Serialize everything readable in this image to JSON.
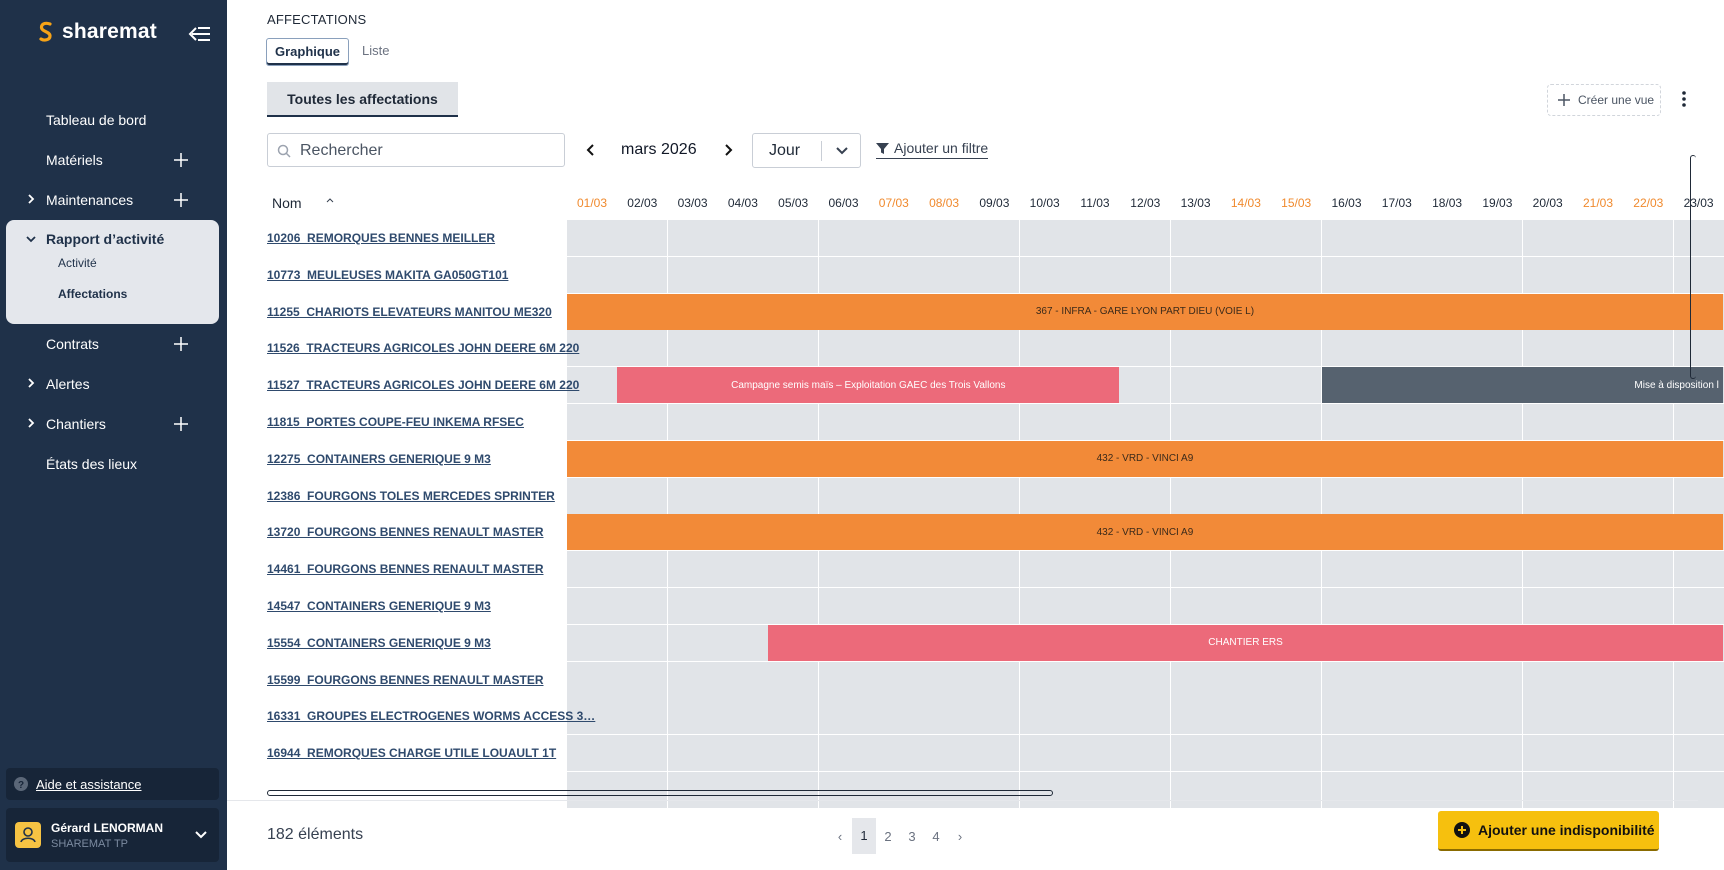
{
  "app": {
    "name": "sharemat"
  },
  "nav": {
    "items": [
      {
        "label": "Tableau de bord",
        "chevron": false,
        "plus": false
      },
      {
        "label": "Matériels",
        "chevron": false,
        "plus": true
      },
      {
        "label": "Maintenances",
        "chevron": true,
        "plus": true
      }
    ],
    "active_group": {
      "label": "Rapport d’activité",
      "children": [
        "Activité",
        "Affectations"
      ]
    },
    "items_after": [
      {
        "label": "Contrats",
        "chevron": false,
        "plus": true
      },
      {
        "label": "Alertes",
        "chevron": true,
        "plus": false
      },
      {
        "label": "Chantiers",
        "chevron": true,
        "plus": true
      },
      {
        "label": "États des lieux",
        "chevron": false,
        "plus": false
      }
    ],
    "help_label": "Aide et assistance"
  },
  "user": {
    "name": "Gérard LENORMAN",
    "company": "SHAREMAT TP"
  },
  "page": {
    "title": "AFFECTATIONS",
    "tabs": [
      "Graphique",
      "Liste"
    ],
    "view_tab": "Toutes les affectations",
    "create_view": "Créer une vue"
  },
  "toolbar": {
    "search_placeholder": "Rechercher",
    "month": "mars 2026",
    "granularity": "Jour",
    "filter_label": "Ajouter un filtre"
  },
  "grid": {
    "name_header": "Nom",
    "days": [
      {
        "label": "01/03",
        "weekend": true
      },
      {
        "label": "02/03",
        "weekend": false
      },
      {
        "label": "03/03",
        "weekend": false
      },
      {
        "label": "04/03",
        "weekend": false
      },
      {
        "label": "05/03",
        "weekend": false
      },
      {
        "label": "06/03",
        "weekend": false
      },
      {
        "label": "07/03",
        "weekend": true
      },
      {
        "label": "08/03",
        "weekend": true
      },
      {
        "label": "09/03",
        "weekend": false
      },
      {
        "label": "10/03",
        "weekend": false
      },
      {
        "label": "11/03",
        "weekend": false
      },
      {
        "label": "12/03",
        "weekend": false
      },
      {
        "label": "13/03",
        "weekend": false
      },
      {
        "label": "14/03",
        "weekend": true
      },
      {
        "label": "15/03",
        "weekend": true
      },
      {
        "label": "16/03",
        "weekend": false
      },
      {
        "label": "17/03",
        "weekend": false
      },
      {
        "label": "18/03",
        "weekend": false
      },
      {
        "label": "19/03",
        "weekend": false
      },
      {
        "label": "20/03",
        "weekend": false
      },
      {
        "label": "21/03",
        "weekend": true
      },
      {
        "label": "22/03",
        "weekend": true
      },
      {
        "label": "23/03",
        "weekend": false
      }
    ],
    "rows": [
      {
        "name": "10206_REMORQUES BENNES MEILLER",
        "bars": []
      },
      {
        "name": "10773_MEULEUSES MAKITA GA050GT101",
        "bars": []
      },
      {
        "name": "11255_CHARIOTS ELEVATEURS MANITOU ME320",
        "bars": [
          {
            "start": 0,
            "end": 23,
            "label": "367 - INFRA - GARE LYON PART DIEU (VOIE L)",
            "color": "orange"
          }
        ]
      },
      {
        "name": "11526_TRACTEURS AGRICOLES JOHN DEERE 6M 220",
        "bars": []
      },
      {
        "name": "11527_TRACTEURS AGRICOLES JOHN DEERE 6M 220",
        "bars": [
          {
            "start": 1,
            "end": 11,
            "label": "Campagne semis maïs – Exploitation GAEC des Trois Vallons",
            "color": "pink"
          },
          {
            "start": 15,
            "end": 23,
            "label": "Mise à disposition l",
            "color": "grey"
          }
        ]
      },
      {
        "name": "11815_PORTES COUPE-FEU INKEMA RFSEC",
        "bars": []
      },
      {
        "name": "12275_CONTAINERS GENERIQUE 9 M3",
        "bars": [
          {
            "start": 0,
            "end": 23,
            "label": "432 - VRD - VINCI A9",
            "color": "orange"
          }
        ]
      },
      {
        "name": "12386_FOURGONS TOLES MERCEDES SPRINTER",
        "bars": []
      },
      {
        "name": "13720_FOURGONS BENNES RENAULT MASTER",
        "bars": [
          {
            "start": 0,
            "end": 23,
            "label": "432 - VRD - VINCI A9",
            "color": "orange"
          }
        ]
      },
      {
        "name": "14461_FOURGONS BENNES RENAULT MASTER",
        "bars": []
      },
      {
        "name": "14547_CONTAINERS GENERIQUE 9 M3",
        "bars": []
      },
      {
        "name": "15554_CONTAINERS GENERIQUE 9 M3",
        "bars": [
          {
            "start": 4,
            "end": 23,
            "label": "CHANTIER ERS",
            "color": "pink"
          }
        ]
      },
      {
        "name": "15599_FOURGONS BENNES RENAULT MASTER",
        "bars": []
      },
      {
        "name": "16331_GROUPES ELECTROGENES WORMS ACCESS 3…",
        "bars": []
      },
      {
        "name": "16944_REMORQUES CHARGE UTILE LOUAULT 1T",
        "bars": []
      },
      {
        "name": "",
        "bars": []
      }
    ]
  },
  "footer": {
    "count": "182 éléments",
    "pages": [
      "‹",
      "1",
      "2",
      "3",
      "4",
      "›"
    ],
    "current_page": "1",
    "add_button": "Ajouter une indisponibilité"
  },
  "colors": {
    "sidebar": "#1f3149",
    "accent": "#f6c00e",
    "orange_bar": "#f28a38",
    "pink_bar": "#ec6a7a",
    "grey_bar": "#56626f",
    "weekend": "#f08a2e"
  }
}
